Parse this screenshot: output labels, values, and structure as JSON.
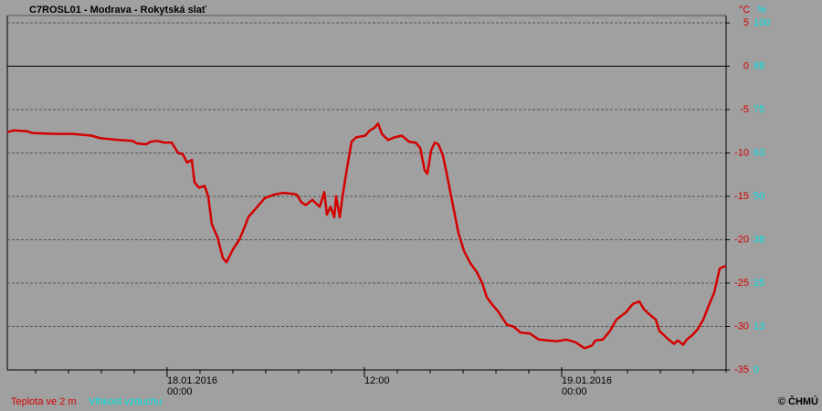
{
  "chart_data": {
    "type": "line",
    "title": "C7ROSL01 - Modrava - Rokytská slať",
    "y_unit": "°C",
    "y2_unit": "%",
    "credit": "© ČHMÚ",
    "x": [
      -9.72,
      -9.33,
      -8.5,
      -8.22,
      -6.83,
      -5.72,
      -4.61,
      -4.06,
      -2.94,
      -2.11,
      -1.83,
      -1.28,
      -1.0,
      -0.61,
      -0.17,
      0.28,
      0.67,
      0.94,
      1.22,
      1.5,
      1.67,
      1.94,
      2.28,
      2.5,
      2.72,
      3.06,
      3.39,
      3.61,
      4.0,
      4.39,
      4.72,
      4.94,
      5.39,
      5.94,
      6.5,
      7.06,
      7.61,
      7.89,
      8.17,
      8.44,
      8.83,
      9.28,
      9.56,
      9.72,
      9.94,
      10.17,
      10.28,
      10.5,
      10.67,
      10.94,
      11.22,
      11.5,
      12.06,
      12.33,
      12.61,
      12.83,
      13.06,
      13.44,
      13.83,
      14.28,
      14.72,
      15.11,
      15.39,
      15.67,
      15.83,
      16.06,
      16.28,
      16.5,
      16.78,
      17.06,
      17.33,
      17.72,
      18.06,
      18.44,
      18.83,
      19.17,
      19.44,
      19.83,
      20.11,
      20.39,
      20.67,
      21.06,
      21.5,
      22.06,
      22.61,
      23.17,
      23.72,
      24.28,
      24.83,
      25.39,
      25.83,
      26.06,
      26.5,
      26.94,
      27.33,
      27.89,
      28.33,
      28.72,
      29.0,
      29.39,
      29.72,
      29.94,
      30.39,
      30.83,
      31.06,
      31.39,
      31.61,
      31.94,
      32.28,
      32.61,
      32.94,
      33.28,
      33.61,
      34.0
    ],
    "series": [
      {
        "name": "Teplota ve 2 m",
        "color": "#d40000",
        "values": [
          -7.6,
          -7.4,
          -7.5,
          -7.7,
          -7.8,
          -7.8,
          -8.0,
          -8.3,
          -8.5,
          -8.6,
          -8.9,
          -9.0,
          -8.7,
          -8.6,
          -8.8,
          -8.8,
          -10.0,
          -10.1,
          -11.1,
          -10.8,
          -13.4,
          -14.0,
          -13.8,
          -15.0,
          -18.2,
          -19.7,
          -22.1,
          -22.6,
          -21.1,
          -20.0,
          -18.5,
          -17.4,
          -16.4,
          -15.2,
          -14.8,
          -14.6,
          -14.7,
          -14.8,
          -15.7,
          -16.0,
          -15.4,
          -16.2,
          -14.5,
          -17.1,
          -16.2,
          -17.4,
          -15.0,
          -17.4,
          -15.0,
          -11.8,
          -8.7,
          -8.2,
          -8.0,
          -7.4,
          -7.1,
          -6.6,
          -7.8,
          -8.5,
          -8.2,
          -8.0,
          -8.7,
          -8.8,
          -9.4,
          -12.0,
          -12.4,
          -9.7,
          -8.8,
          -9.0,
          -10.3,
          -12.9,
          -15.5,
          -19.2,
          -21.3,
          -22.7,
          -23.7,
          -25.0,
          -26.6,
          -27.6,
          -28.2,
          -29.0,
          -29.8,
          -30.0,
          -30.7,
          -30.8,
          -31.5,
          -31.6,
          -31.7,
          -31.5,
          -31.8,
          -32.5,
          -32.2,
          -31.6,
          -31.5,
          -30.5,
          -29.2,
          -28.4,
          -27.4,
          -27.1,
          -28.0,
          -28.7,
          -29.2,
          -30.5,
          -31.3,
          -32.0,
          -31.6,
          -32.1,
          -31.5,
          -31.0,
          -30.3,
          -29.2,
          -27.6,
          -26.1,
          -23.3,
          -23.0
        ]
      },
      {
        "name": "Vlhkost vzduchu",
        "color": "#00e0e0",
        "axis": "y2"
      }
    ],
    "xlim": [
      -9.72,
      34
    ],
    "xticks": [
      {
        "value": 0,
        "label": "18.01.2016 00:00"
      },
      {
        "value": 12,
        "label": "12:00"
      },
      {
        "value": 24,
        "label": "19.01.2016 00:00"
      }
    ],
    "xminor_ticks": [
      -8,
      -6,
      -4,
      -2,
      2,
      4,
      6,
      8,
      10,
      14,
      16,
      18,
      20,
      22,
      26,
      28,
      30,
      32
    ],
    "ylim": [
      -35,
      5
    ],
    "yticks": [
      -35,
      -30,
      -25,
      -20,
      -15,
      -10,
      -5,
      0,
      5
    ],
    "y2lim": [
      0,
      100
    ],
    "y2ticks": [
      0,
      {
        "value": 12.5,
        "label": "13"
      },
      25,
      {
        "value": 37.5,
        "label": "38"
      },
      50,
      {
        "value": 62.5,
        "label": "63"
      },
      75,
      {
        "value": 87.5,
        "label": "88"
      },
      100
    ],
    "grid": true
  }
}
